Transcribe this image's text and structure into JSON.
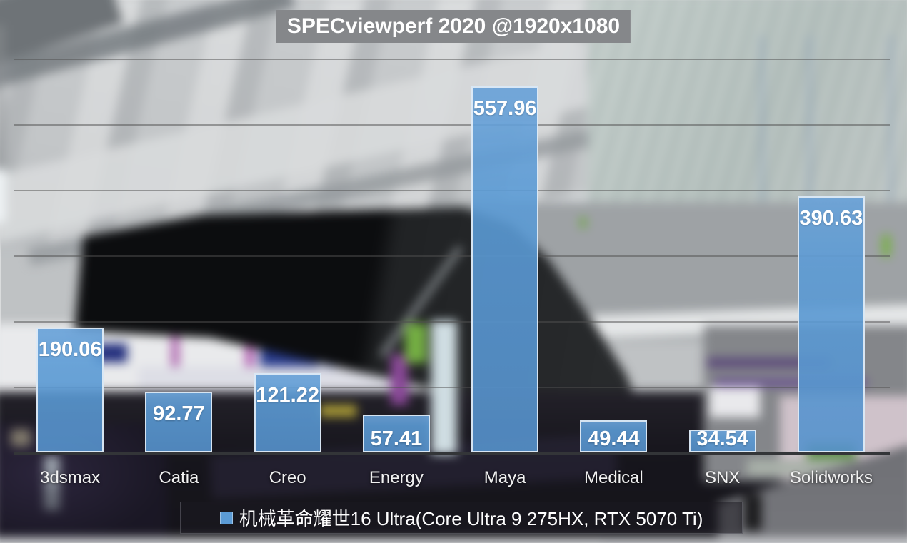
{
  "title": {
    "text": "SPECviewperf 2020 @1920x1080"
  },
  "legend": {
    "label": "机械革命耀世16 Ultra(Core Ultra 9 275HX, RTX 5070 Ti)",
    "swatch_color": "#5B9BD5"
  },
  "chart_data": {
    "type": "bar",
    "title": "SPECviewperf 2020 @1920x1080",
    "categories": [
      "3dsmax",
      "Catia",
      "Creo",
      "Energy",
      "Maya",
      "Medical",
      "SNX",
      "Solidworks"
    ],
    "series": [
      {
        "name": "机械革命耀世16 Ultra(Core Ultra 9 275HX, RTX 5070 Ti)",
        "values": [
          190.06,
          92.77,
          121.22,
          57.41,
          557.96,
          49.44,
          34.54,
          390.63
        ]
      }
    ],
    "value_labels": [
      "190.06",
      "92.77",
      "121.22",
      "57.41",
      "557.96",
      "49.44",
      "34.54",
      "390.63"
    ],
    "ylim": [
      0,
      600
    ],
    "gridline_interval": 100,
    "grid": true,
    "xlabel": "",
    "ylabel": "",
    "legend_position": "bottom",
    "bar_color": "#5B9BD5",
    "bar_border_color": "#EEF4FA",
    "value_label_color": "#FFFFFF",
    "category_label_color": "#F2F2F2",
    "gridline_color": "#505050",
    "axis_line_color": "#333538",
    "title_bg_color": "#85878A",
    "title_text_color": "#FFFFFF",
    "legend_bg_color": "#1C1A21",
    "legend_text_color": "#FFFFFF"
  }
}
